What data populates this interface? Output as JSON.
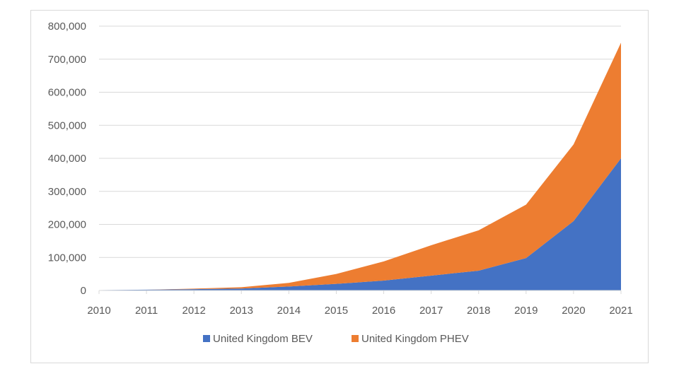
{
  "chart_data": {
    "type": "area",
    "stacked": true,
    "title": "",
    "xlabel": "",
    "ylabel": "",
    "x": [
      "2010",
      "2011",
      "2012",
      "2013",
      "2014",
      "2015",
      "2016",
      "2017",
      "2018",
      "2019",
      "2020",
      "2021"
    ],
    "ylim": [
      0,
      800000
    ],
    "yticks": [
      0,
      100000,
      200000,
      300000,
      400000,
      500000,
      600000,
      700000,
      800000
    ],
    "ytick_labels": [
      "0",
      "100,000",
      "200,000",
      "300,000",
      "400,000",
      "500,000",
      "600,000",
      "700,000",
      "800,000"
    ],
    "grid": true,
    "legend_position": "bottom",
    "series": [
      {
        "name": "United Kingdom BEV",
        "color": "#4472c4",
        "values": [
          1000,
          2500,
          4000,
          6000,
          12000,
          20000,
          30000,
          45000,
          60000,
          98000,
          210000,
          400000
        ]
      },
      {
        "name": "United Kingdom PHEV",
        "color": "#ed7d31",
        "values": [
          0,
          0,
          1500,
          4000,
          11000,
          30000,
          58000,
          92000,
          122000,
          162000,
          232000,
          350000
        ]
      }
    ]
  }
}
